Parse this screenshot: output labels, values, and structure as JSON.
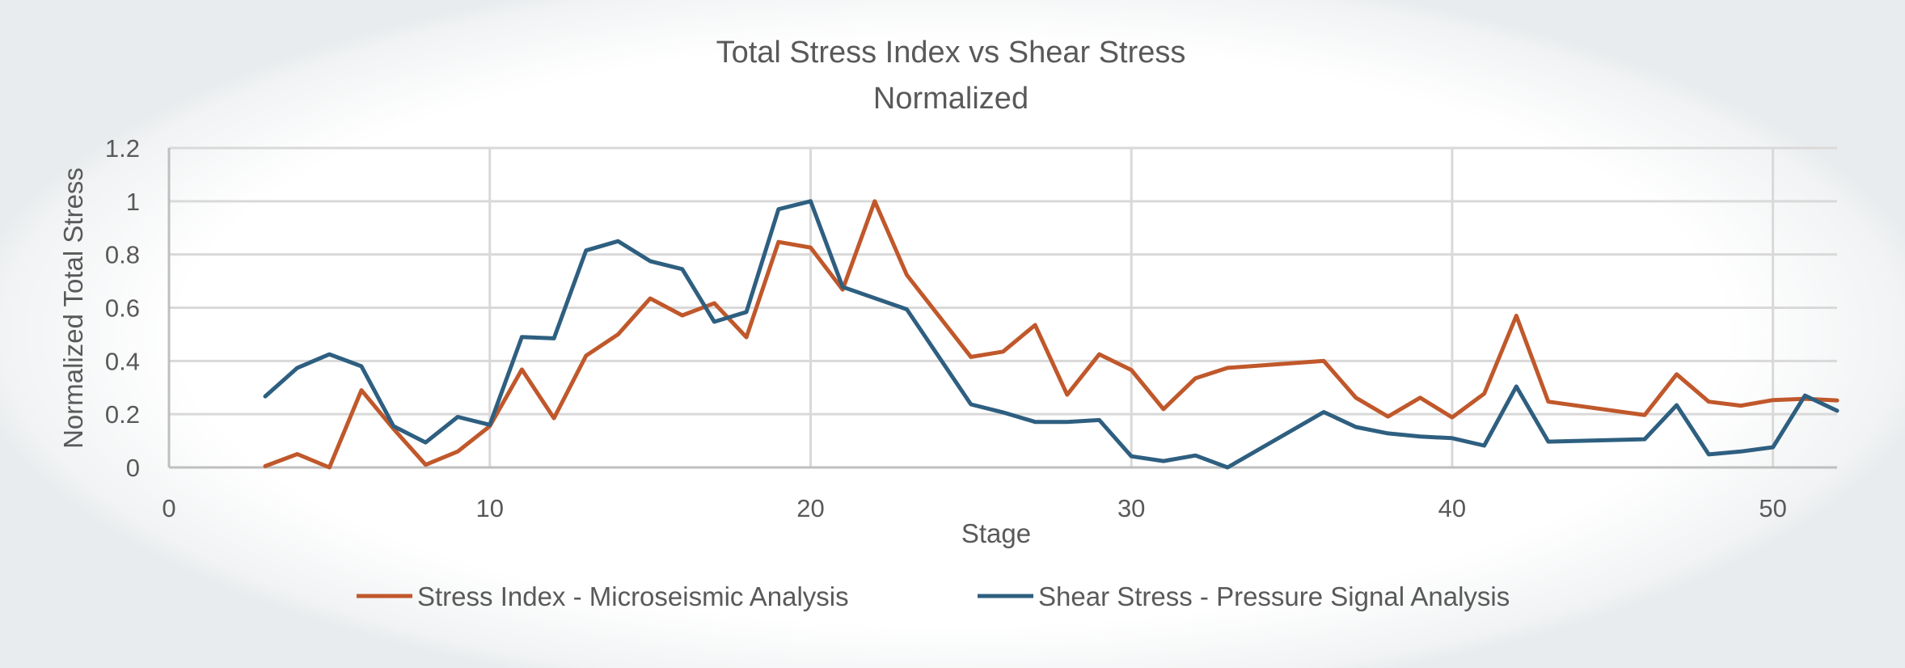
{
  "chart_data": {
    "type": "line",
    "title": "Total Stress Index vs Shear Stress",
    "subtitle": "Normalized",
    "xlabel": "Stage",
    "ylabel": "Normalized Total Stress",
    "xlim": [
      0,
      52
    ],
    "ylim": [
      0,
      1.2
    ],
    "xticks": [
      0,
      10,
      20,
      30,
      40,
      50
    ],
    "yticks": [
      0,
      0.2,
      0.4,
      0.6,
      0.8,
      1,
      1.2
    ],
    "ytick_labels": [
      "0",
      "0.2",
      "0.4",
      "0.6",
      "0.8",
      "1",
      "1.2"
    ],
    "grid": true,
    "legend_position": "bottom",
    "series": [
      {
        "name": "Stress Index - Microseismic Analysis",
        "color": "#c0582b",
        "x": [
          3,
          4,
          5,
          6,
          7,
          8,
          9,
          10,
          11,
          12,
          13,
          14,
          15,
          16,
          17,
          18,
          19,
          20,
          21,
          22,
          23,
          25,
          26,
          27,
          28,
          29,
          30,
          31,
          32,
          33,
          36,
          37,
          38,
          39,
          40,
          41,
          42,
          43,
          46,
          47,
          48,
          49,
          50,
          51,
          52
        ],
        "y": [
          0.005,
          0.05,
          0.0,
          0.29,
          0.145,
          0.01,
          0.06,
          0.155,
          0.368,
          0.185,
          0.42,
          0.5,
          0.635,
          0.571,
          0.617,
          0.489,
          0.847,
          0.826,
          0.668,
          1.0,
          0.723,
          0.415,
          0.435,
          0.535,
          0.273,
          0.425,
          0.366,
          0.219,
          0.335,
          0.374,
          0.4,
          0.262,
          0.191,
          0.262,
          0.188,
          0.277,
          0.57,
          0.247,
          0.197,
          0.35,
          0.247,
          0.232,
          0.253,
          0.258,
          0.252
        ]
      },
      {
        "name": "Shear Stress - Pressure Signal Analysis",
        "color": "#2e5f80",
        "x": [
          3,
          4,
          5,
          6,
          7,
          8,
          9,
          10,
          11,
          12,
          13,
          14,
          15,
          16,
          17,
          18,
          19,
          20,
          21,
          23,
          25,
          26,
          27,
          28,
          29,
          30,
          31,
          32,
          33,
          36,
          37,
          38,
          39,
          40,
          41,
          42,
          43,
          46,
          47,
          48,
          49,
          50,
          51,
          52
        ],
        "y": [
          0.267,
          0.374,
          0.425,
          0.38,
          0.155,
          0.094,
          0.19,
          0.16,
          0.49,
          0.485,
          0.815,
          0.85,
          0.775,
          0.745,
          0.547,
          0.584,
          0.97,
          1.0,
          0.678,
          0.594,
          0.237,
          0.207,
          0.171,
          0.171,
          0.178,
          0.042,
          0.024,
          0.045,
          0.0,
          0.208,
          0.152,
          0.128,
          0.116,
          0.11,
          0.082,
          0.304,
          0.097,
          0.106,
          0.234,
          0.049,
          0.06,
          0.076,
          0.27,
          0.213
        ]
      }
    ]
  }
}
